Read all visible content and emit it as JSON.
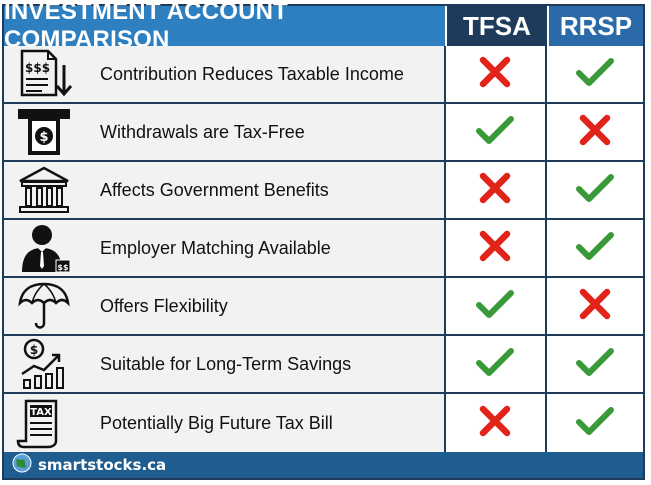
{
  "header": {
    "title": "INVESTMENT ACCOUNT COMPARISON",
    "col1": "TFSA",
    "col2": "RRSP"
  },
  "rows": [
    {
      "icon": "tax-document-icon",
      "label": "Contribution Reduces Taxable Income",
      "tfsa": "cross",
      "rrsp": "check"
    },
    {
      "icon": "atm-cash-icon",
      "label": "Withdrawals are Tax-Free",
      "tfsa": "check",
      "rrsp": "cross"
    },
    {
      "icon": "bank-building-icon",
      "label": "Affects Government Benefits",
      "tfsa": "cross",
      "rrsp": "check"
    },
    {
      "icon": "employer-icon",
      "label": "Employer Matching Available",
      "tfsa": "cross",
      "rrsp": "check"
    },
    {
      "icon": "umbrella-icon",
      "label": "Offers Flexibility",
      "tfsa": "check",
      "rrsp": "cross"
    },
    {
      "icon": "growth-chart-icon",
      "label": "Suitable for Long-Term Savings",
      "tfsa": "check",
      "rrsp": "check"
    },
    {
      "icon": "tax-bill-icon",
      "label": "Potentially Big Future Tax Bill",
      "tfsa": "cross",
      "rrsp": "check"
    }
  ],
  "footer": {
    "brand": "smartstocks.ca",
    "icon": "globe-icon"
  },
  "colors": {
    "check": "#3a9a3a",
    "cross": "#e2231a",
    "header_blue": "#2e7fc0",
    "header_navy": "#1f3b5c"
  }
}
